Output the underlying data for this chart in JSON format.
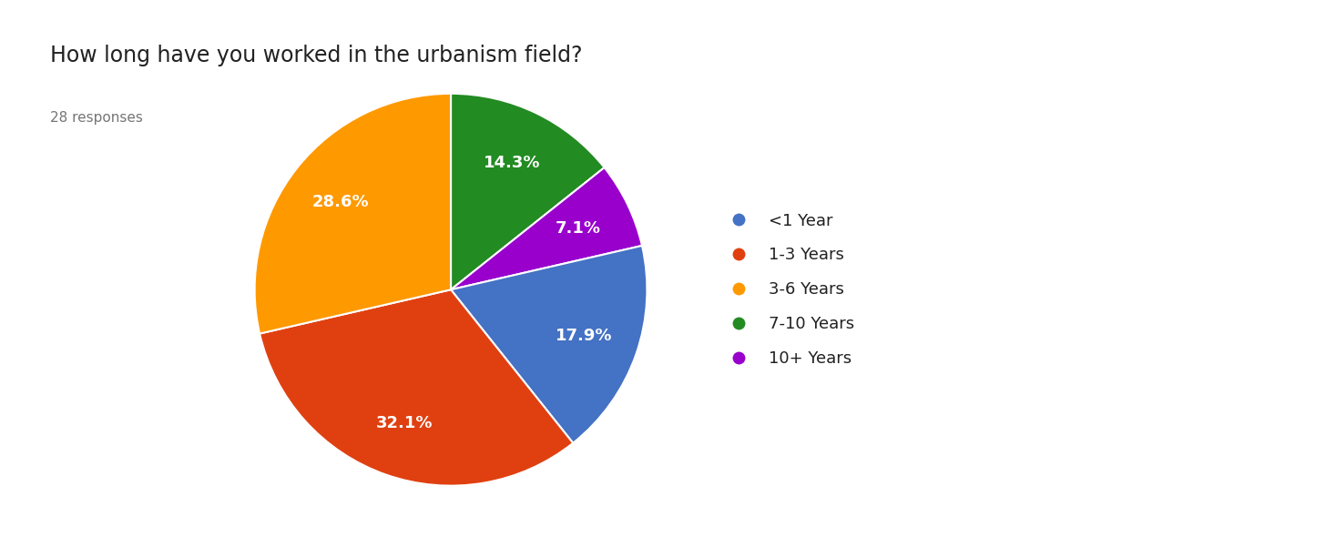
{
  "title": "How long have you worked in the urbanism field?",
  "subtitle": "28 responses",
  "labels": [
    "7-10 Years",
    "10+ Years",
    "<1 Year",
    "1-3 Years",
    "3-6 Years"
  ],
  "legend_labels": [
    "<1 Year",
    "1-3 Years",
    "3-6 Years",
    "7-10 Years",
    "10+ Years"
  ],
  "values": [
    14.3,
    7.1,
    17.9,
    32.1,
    28.6
  ],
  "colors": [
    "#228B22",
    "#9900CC",
    "#4472C4",
    "#E04010",
    "#FF9900"
  ],
  "legend_colors": [
    "#4472C4",
    "#E04010",
    "#FF9900",
    "#228B22",
    "#9900CC"
  ],
  "title_fontsize": 17,
  "subtitle_fontsize": 11,
  "pct_fontsize": 13,
  "legend_fontsize": 13,
  "background_color": "#ffffff",
  "startangle": 90,
  "pct_distance": 0.72
}
